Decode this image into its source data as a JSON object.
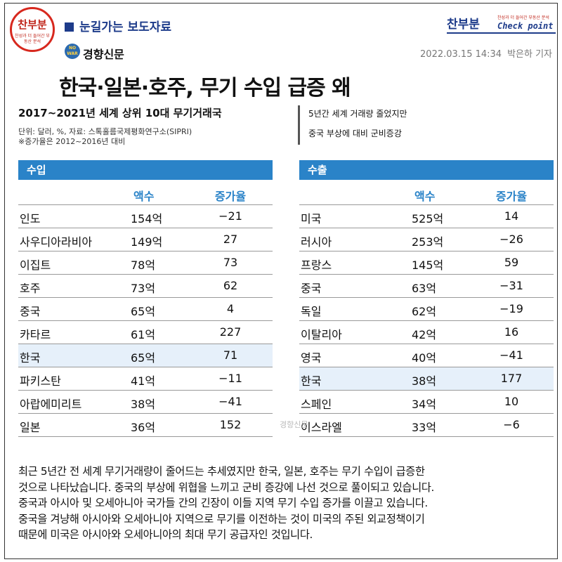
{
  "header": {
    "logo_left": {
      "word": "찬부분",
      "tagline": "찬성과 더 들어간 부동산 분석"
    },
    "press_label": "눈길가는 보도자료",
    "paper_logo": {
      "badge": "NO WAR",
      "name": "경향신문"
    },
    "logo_right": {
      "word": "찬부분",
      "tagline": "찬성과 더 들어간 부동산 분석",
      "check": "Check point"
    },
    "date": "2022.03.15 14:34",
    "reporter": "박은하 기자"
  },
  "headline": "한국·일본·호주, 무기 수입 급증 왜",
  "subtitle": "2017~2021년 세계 상위 10대 무기거래국",
  "source_lines": [
    "단위: 달러, %, 자료: 스톡홀름국제평화연구소(SIPRI)",
    "※증가율은 2012~2016년 대비"
  ],
  "summary_lines": [
    "5년간 세계 거래량 줄었지만",
    "중국 부상에 대비 군비증강"
  ],
  "columns": {
    "amount": "액수",
    "rate": "증가율"
  },
  "import_table": {
    "title": "수입",
    "rows": [
      {
        "country": "인도",
        "amount": "154억",
        "rate": "−21"
      },
      {
        "country": "사우디아라비아",
        "amount": "149억",
        "rate": "27"
      },
      {
        "country": "이집트",
        "amount": "78억",
        "rate": "73"
      },
      {
        "country": "호주",
        "amount": "73억",
        "rate": "62"
      },
      {
        "country": "중국",
        "amount": "65억",
        "rate": "4"
      },
      {
        "country": "카타르",
        "amount": "61억",
        "rate": "227"
      },
      {
        "country": "한국",
        "amount": "65억",
        "rate": "71"
      },
      {
        "country": "파키스탄",
        "amount": "41억",
        "rate": "−11"
      },
      {
        "country": "아랍에미리트",
        "amount": "38억",
        "rate": "−41"
      },
      {
        "country": "일본",
        "amount": "36억",
        "rate": "152"
      }
    ]
  },
  "export_table": {
    "title": "수출",
    "rows": [
      {
        "country": "미국",
        "amount": "525억",
        "rate": "14"
      },
      {
        "country": "러시아",
        "amount": "253억",
        "rate": "−26"
      },
      {
        "country": "프랑스",
        "amount": "145억",
        "rate": "59"
      },
      {
        "country": "중국",
        "amount": "63억",
        "rate": "−31"
      },
      {
        "country": "독일",
        "amount": "62억",
        "rate": "−19"
      },
      {
        "country": "이탈리아",
        "amount": "42억",
        "rate": "16"
      },
      {
        "country": "영국",
        "amount": "40억",
        "rate": "−41"
      },
      {
        "country": "한국",
        "amount": "38억",
        "rate": "177"
      },
      {
        "country": "스페인",
        "amount": "34억",
        "rate": "10"
      },
      {
        "country": "이스라엘",
        "amount": "33억",
        "rate": "−6"
      }
    ]
  },
  "watermark": "경향신문",
  "body_lines": [
    "최근 5년간 전 세계 무기거래량이 줄어드는 추세였지만 한국, 일본, 호주는 무기 수입이 급증한",
    "것으로 나타났습니다. 중국의 부상에 위협을 느끼고 군비 증강에 나선 것으로 풀이되고 있습니다.",
    "중국과 아시아 및 오세아니아 국가들 간의 긴장이 이들 지역 무기 수입 증가를 이끌고 있습니다.",
    "중국을 겨냥해 아시아와 오세아니아 지역으로 무기를 이전하는 것이 미국의 주된 외교정책이기",
    "때문에 미국은 아시아와 오세아니아의 최대 무기 공급자인 것입니다."
  ],
  "colors": {
    "accent_blue": "#2a83c8",
    "navy": "#1d3b8a",
    "logo_red": "#c0271c",
    "highlight_row": "#e6f0fa"
  }
}
